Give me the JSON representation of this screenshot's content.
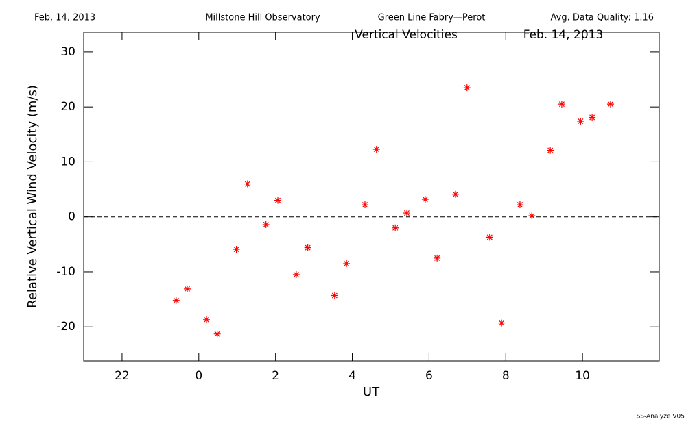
{
  "header": {
    "date": "Feb. 14, 2013",
    "observatory": "Millstone Hill Observatory",
    "instrument": "Green Line Fabry—Perot",
    "quality": "Avg. Data Quality: 1.16"
  },
  "footer": "SS-Analyze V05",
  "chart_data": {
    "type": "scatter",
    "title": "Vertical Velocities",
    "subtitle": "Feb. 14, 2013",
    "x_label": "UT",
    "y_label": "Relative Vertical Wind Velocity (m/s)",
    "xlim": [
      -3,
      12
    ],
    "xticks": [
      {
        "value": -2,
        "label": "22"
      },
      0,
      2,
      4,
      6,
      8,
      10
    ],
    "ylim": [
      -26.2,
      33.6
    ],
    "yticks": [
      -20,
      -10,
      0,
      10,
      20,
      30
    ],
    "reference_line": 0,
    "color": "#ff0000",
    "marker": "asterisk",
    "x": [
      -0.59,
      -0.3,
      0.2,
      0.48,
      0.98,
      1.27,
      1.75,
      2.06,
      2.54,
      2.84,
      3.54,
      3.85,
      4.33,
      4.63,
      5.12,
      5.42,
      5.9,
      6.21,
      6.69,
      6.99,
      7.58,
      7.89,
      8.37,
      8.68,
      9.16,
      9.46,
      9.95,
      10.25,
      10.73
    ],
    "values": [
      -15.2,
      -13.1,
      -18.7,
      -21.3,
      -5.9,
      6.0,
      -1.4,
      3.0,
      -10.5,
      -5.6,
      -14.3,
      -8.5,
      2.2,
      12.3,
      -2.0,
      0.7,
      3.2,
      -7.5,
      4.1,
      23.5,
      -3.7,
      -19.3,
      2.2,
      0.2,
      12.1,
      20.5,
      17.4,
      18.1,
      20.5
    ]
  }
}
